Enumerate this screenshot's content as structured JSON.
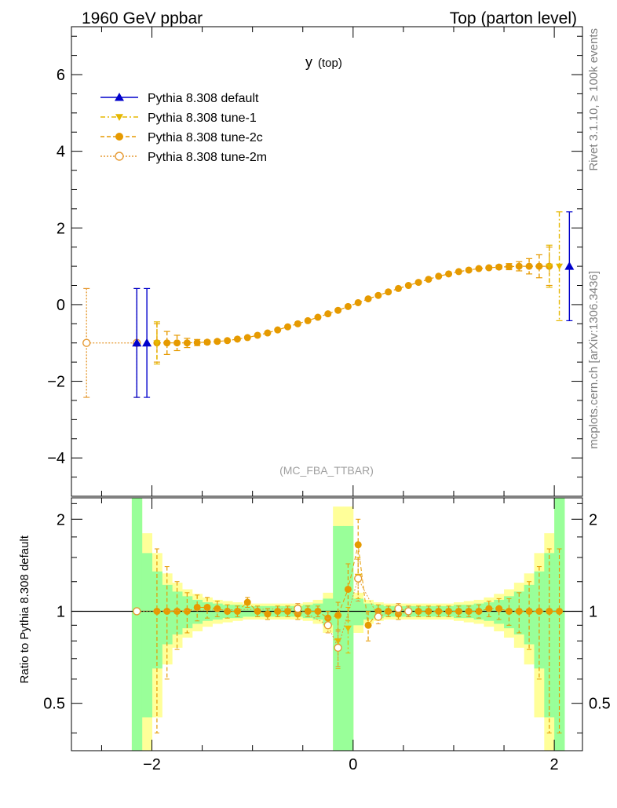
{
  "header": {
    "left": "1960 GeV ppbar",
    "right": "Top (parton level)"
  },
  "side_labels": {
    "rivet": "Rivet 3.1.10, ≥ 100k events",
    "mcplots": "mcplots.cern.ch [arXiv:1306.3436]"
  },
  "colors": {
    "default": "#0000cc",
    "tune1": "#e6b800",
    "tune2c": "#e69a00",
    "tune2m": "#e69a33",
    "band_inner": "#99ff99",
    "band_outer": "#ffff99"
  },
  "chart_data": [
    {
      "type": "scatter",
      "title_main": "y",
      "title_sub": "(top)",
      "watermark": "(MC_FBA_TTBAR)",
      "xlim": [
        -2.8,
        2.28
      ],
      "ylim": [
        -5.0,
        7.25
      ],
      "yticks": [
        -4,
        -2,
        0,
        2,
        4,
        6
      ],
      "series": [
        {
          "name": "Pythia 8.308 default",
          "marker": "triangle-up",
          "points": [
            {
              "x": -2.15,
              "y": -1.0,
              "err": 1.42
            },
            {
              "x": -2.05,
              "y": -1.0,
              "err": 1.42
            },
            {
              "x": 2.15,
              "y": 1.0,
              "err": 1.42
            }
          ]
        },
        {
          "name": "Pythia 8.308 tune-1",
          "marker": "triangle-down",
          "points": [
            {
              "x": -1.95,
              "y": -1.0,
              "err": 0.55
            },
            {
              "x": 1.95,
              "y": 1.0,
              "err": 0.55
            },
            {
              "x": 2.05,
              "y": 1.0,
              "err": 1.42
            }
          ]
        },
        {
          "name": "Pythia 8.308 tune-2c",
          "marker": "circle",
          "points": [
            {
              "x": -1.95,
              "y": -1.0,
              "err": 0.5
            },
            {
              "x": -1.85,
              "y": -1.0,
              "err": 0.3
            },
            {
              "x": -1.75,
              "y": -1.0,
              "err": 0.2
            },
            {
              "x": -1.65,
              "y": -1.0,
              "err": 0.12
            },
            {
              "x": -1.55,
              "y": -0.99,
              "err": 0.08
            },
            {
              "x": -1.45,
              "y": -0.98,
              "err": 0.05
            },
            {
              "x": -1.35,
              "y": -0.96,
              "err": 0.04
            },
            {
              "x": -1.25,
              "y": -0.94,
              "err": 0.03
            },
            {
              "x": -1.15,
              "y": -0.9,
              "err": 0.03
            },
            {
              "x": -1.05,
              "y": -0.86,
              "err": 0.02
            },
            {
              "x": -0.95,
              "y": -0.8,
              "err": 0.02
            },
            {
              "x": -0.85,
              "y": -0.74,
              "err": 0.02
            },
            {
              "x": -0.75,
              "y": -0.66,
              "err": 0.02
            },
            {
              "x": -0.65,
              "y": -0.58,
              "err": 0.02
            },
            {
              "x": -0.55,
              "y": -0.5,
              "err": 0.02
            },
            {
              "x": -0.45,
              "y": -0.42,
              "err": 0.02
            },
            {
              "x": -0.35,
              "y": -0.33,
              "err": 0.02
            },
            {
              "x": -0.25,
              "y": -0.24,
              "err": 0.02
            },
            {
              "x": -0.15,
              "y": -0.15,
              "err": 0.02
            },
            {
              "x": -0.05,
              "y": -0.05,
              "err": 0.02
            },
            {
              "x": 0.05,
              "y": 0.05,
              "err": 0.02
            },
            {
              "x": 0.15,
              "y": 0.15,
              "err": 0.02
            },
            {
              "x": 0.25,
              "y": 0.24,
              "err": 0.02
            },
            {
              "x": 0.35,
              "y": 0.33,
              "err": 0.02
            },
            {
              "x": 0.45,
              "y": 0.42,
              "err": 0.02
            },
            {
              "x": 0.55,
              "y": 0.5,
              "err": 0.02
            },
            {
              "x": 0.65,
              "y": 0.58,
              "err": 0.02
            },
            {
              "x": 0.75,
              "y": 0.66,
              "err": 0.02
            },
            {
              "x": 0.85,
              "y": 0.74,
              "err": 0.02
            },
            {
              "x": 0.95,
              "y": 0.8,
              "err": 0.02
            },
            {
              "x": 1.05,
              "y": 0.86,
              "err": 0.02
            },
            {
              "x": 1.15,
              "y": 0.9,
              "err": 0.03
            },
            {
              "x": 1.25,
              "y": 0.94,
              "err": 0.03
            },
            {
              "x": 1.35,
              "y": 0.96,
              "err": 0.04
            },
            {
              "x": 1.45,
              "y": 0.98,
              "err": 0.05
            },
            {
              "x": 1.55,
              "y": 0.99,
              "err": 0.08
            },
            {
              "x": 1.65,
              "y": 1.0,
              "err": 0.12
            },
            {
              "x": 1.75,
              "y": 1.0,
              "err": 0.2
            },
            {
              "x": 1.85,
              "y": 1.0,
              "err": 0.3
            },
            {
              "x": 1.95,
              "y": 1.0,
              "err": 0.5
            }
          ]
        },
        {
          "name": "Pythia 8.308 tune-2m",
          "marker": "open-circle",
          "points": [
            {
              "x": -2.65,
              "y": -1.0,
              "err": 1.42
            },
            {
              "x": -2.15,
              "y": -1.0,
              "err": 1.42
            }
          ]
        }
      ]
    },
    {
      "type": "scatter",
      "ylabel": "Ratio to Pythia 8.308 default",
      "xlim": [
        -2.8,
        2.28
      ],
      "ylim": [
        0.35,
        2.35
      ],
      "yscale": "log",
      "yticks": [
        0.5,
        1,
        2
      ],
      "xticks": [
        -2,
        0,
        2
      ],
      "reference_line": 1,
      "band": {
        "bin_width": 0.1,
        "x_start": -2.2,
        "inner_halfwidth": [
          1.4,
          0.55,
          0.35,
          0.22,
          0.16,
          0.12,
          0.09,
          0.07,
          0.06,
          0.05,
          0.05,
          0.04,
          0.04,
          0.04,
          0.04,
          0.04,
          0.04,
          0.05,
          0.06,
          0.1,
          0.9,
          0.9,
          0.1,
          0.06,
          0.05,
          0.04,
          0.04,
          0.04,
          0.04,
          0.04,
          0.04,
          0.04,
          0.05,
          0.05,
          0.06,
          0.07,
          0.09,
          0.12,
          0.16,
          0.22,
          0.35,
          0.55,
          1.4
        ],
        "outer_halfwidth": [
          1.4,
          0.8,
          0.55,
          0.33,
          0.24,
          0.18,
          0.14,
          0.11,
          0.09,
          0.08,
          0.07,
          0.06,
          0.06,
          0.06,
          0.06,
          0.06,
          0.06,
          0.07,
          0.09,
          0.15,
          1.2,
          1.2,
          0.15,
          0.09,
          0.07,
          0.06,
          0.06,
          0.06,
          0.06,
          0.06,
          0.06,
          0.06,
          0.07,
          0.08,
          0.09,
          0.11,
          0.14,
          0.18,
          0.24,
          0.33,
          0.55,
          0.8,
          1.4
        ]
      },
      "series": [
        {
          "name": "Pythia 8.308 tune-2c",
          "points": [
            {
              "x": -1.95,
              "y": 1.0,
              "err": 0.6
            },
            {
              "x": -1.85,
              "y": 1.0,
              "err": 0.4
            },
            {
              "x": -1.75,
              "y": 1.0,
              "err": 0.25
            },
            {
              "x": -1.65,
              "y": 1.0,
              "err": 0.15
            },
            {
              "x": -1.55,
              "y": 1.03,
              "err": 0.1
            },
            {
              "x": -1.45,
              "y": 1.03,
              "err": 0.08
            },
            {
              "x": -1.35,
              "y": 1.02,
              "err": 0.06
            },
            {
              "x": -1.25,
              "y": 1.0,
              "err": 0.05
            },
            {
              "x": -1.15,
              "y": 1.0,
              "err": 0.04
            },
            {
              "x": -1.05,
              "y": 1.07,
              "err": 0.04
            },
            {
              "x": -0.95,
              "y": 1.0,
              "err": 0.04
            },
            {
              "x": -0.85,
              "y": 0.98,
              "err": 0.04
            },
            {
              "x": -0.75,
              "y": 1.0,
              "err": 0.04
            },
            {
              "x": -0.65,
              "y": 1.0,
              "err": 0.04
            },
            {
              "x": -0.55,
              "y": 0.98,
              "err": 0.04
            },
            {
              "x": -0.45,
              "y": 1.0,
              "err": 0.04
            },
            {
              "x": -0.35,
              "y": 1.0,
              "err": 0.04
            },
            {
              "x": -0.25,
              "y": 0.95,
              "err": 0.05
            },
            {
              "x": -0.15,
              "y": 0.97,
              "err": 0.1
            },
            {
              "x": -0.05,
              "y": 1.18,
              "err": 0.25
            },
            {
              "x": 0.05,
              "y": 1.65,
              "err": 0.35
            },
            {
              "x": 0.15,
              "y": 0.9,
              "err": 0.1
            },
            {
              "x": 0.25,
              "y": 1.0,
              "err": 0.05
            },
            {
              "x": 0.35,
              "y": 1.0,
              "err": 0.04
            },
            {
              "x": 0.45,
              "y": 0.98,
              "err": 0.04
            },
            {
              "x": 0.55,
              "y": 1.0,
              "err": 0.04
            },
            {
              "x": 0.65,
              "y": 1.0,
              "err": 0.04
            },
            {
              "x": 0.75,
              "y": 1.0,
              "err": 0.04
            },
            {
              "x": 0.85,
              "y": 1.0,
              "err": 0.04
            },
            {
              "x": 0.95,
              "y": 1.0,
              "err": 0.04
            },
            {
              "x": 1.05,
              "y": 1.0,
              "err": 0.04
            },
            {
              "x": 1.15,
              "y": 1.0,
              "err": 0.04
            },
            {
              "x": 1.25,
              "y": 1.0,
              "err": 0.05
            },
            {
              "x": 1.35,
              "y": 1.02,
              "err": 0.06
            },
            {
              "x": 1.45,
              "y": 1.02,
              "err": 0.08
            },
            {
              "x": 1.55,
              "y": 1.0,
              "err": 0.1
            },
            {
              "x": 1.65,
              "y": 1.0,
              "err": 0.15
            },
            {
              "x": 1.75,
              "y": 1.0,
              "err": 0.25
            },
            {
              "x": 1.85,
              "y": 1.0,
              "err": 0.4
            },
            {
              "x": 1.95,
              "y": 1.0,
              "err": 0.6
            },
            {
              "x": 2.05,
              "y": 1.0,
              "err": 0.6
            }
          ]
        },
        {
          "name": "Pythia 8.308 tune-1",
          "points": [
            {
              "x": -0.15,
              "y": 0.8,
              "err": 0.15
            },
            {
              "x": -0.05,
              "y": 0.88,
              "err": 0.15
            },
            {
              "x": 0.05,
              "y": 1.3,
              "err": 0.2
            }
          ]
        },
        {
          "name": "Pythia 8.308 tune-2m",
          "points": [
            {
              "x": -2.15,
              "y": 1.0,
              "err": 0.0
            },
            {
              "x": -0.55,
              "y": 1.02,
              "err": 0.04
            },
            {
              "x": -0.25,
              "y": 0.9,
              "err": 0.05
            },
            {
              "x": -0.15,
              "y": 0.76,
              "err": 0.1
            },
            {
              "x": 0.05,
              "y": 1.28,
              "err": 0.2
            },
            {
              "x": 0.25,
              "y": 0.96,
              "err": 0.05
            },
            {
              "x": 0.45,
              "y": 1.02,
              "err": 0.04
            },
            {
              "x": 0.55,
              "y": 1.0,
              "err": 0.04
            }
          ]
        }
      ]
    }
  ]
}
